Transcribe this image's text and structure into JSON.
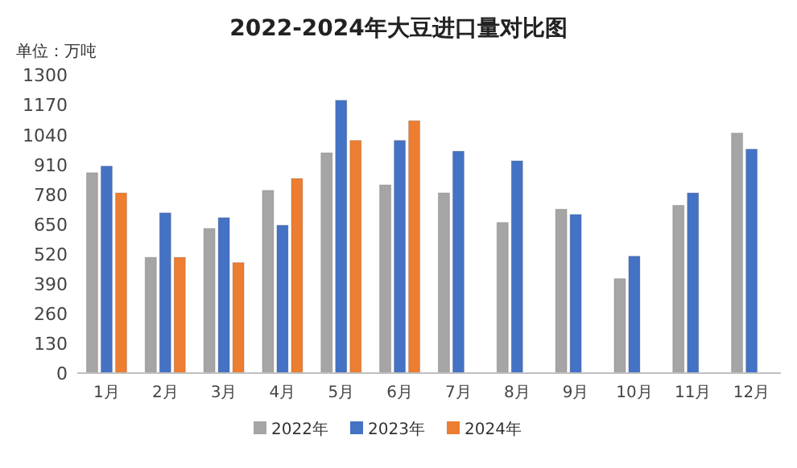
{
  "chart_data": {
    "type": "bar",
    "title": "2022-2024年大豆进口量对比图",
    "ylabel": "单位：万吨",
    "categories": [
      "1月",
      "2月",
      "3月",
      "4月",
      "5月",
      "6月",
      "7月",
      "8月",
      "9月",
      "10月",
      "11月",
      "12月"
    ],
    "series": [
      {
        "name": "2022年",
        "color": "#a5a5a5",
        "values": [
          874,
          505,
          631,
          797,
          961,
          821,
          786,
          657,
          715,
          412,
          732,
          1047
        ]
      },
      {
        "name": "2023年",
        "color": "#4472c4",
        "values": [
          903,
          699,
          678,
          645,
          1190,
          1015,
          968,
          926,
          692,
          510,
          786,
          977
        ]
      },
      {
        "name": "2024年",
        "color": "#ed7d31",
        "values": [
          786,
          505,
          482,
          849,
          1015,
          1101,
          null,
          null,
          null,
          null,
          null,
          null
        ]
      }
    ],
    "ylim": [
      0,
      1300
    ],
    "yticks": [
      0,
      130,
      260,
      390,
      520,
      650,
      780,
      910,
      1040,
      1170,
      1300
    ],
    "grid": false,
    "legend": "bottom"
  }
}
